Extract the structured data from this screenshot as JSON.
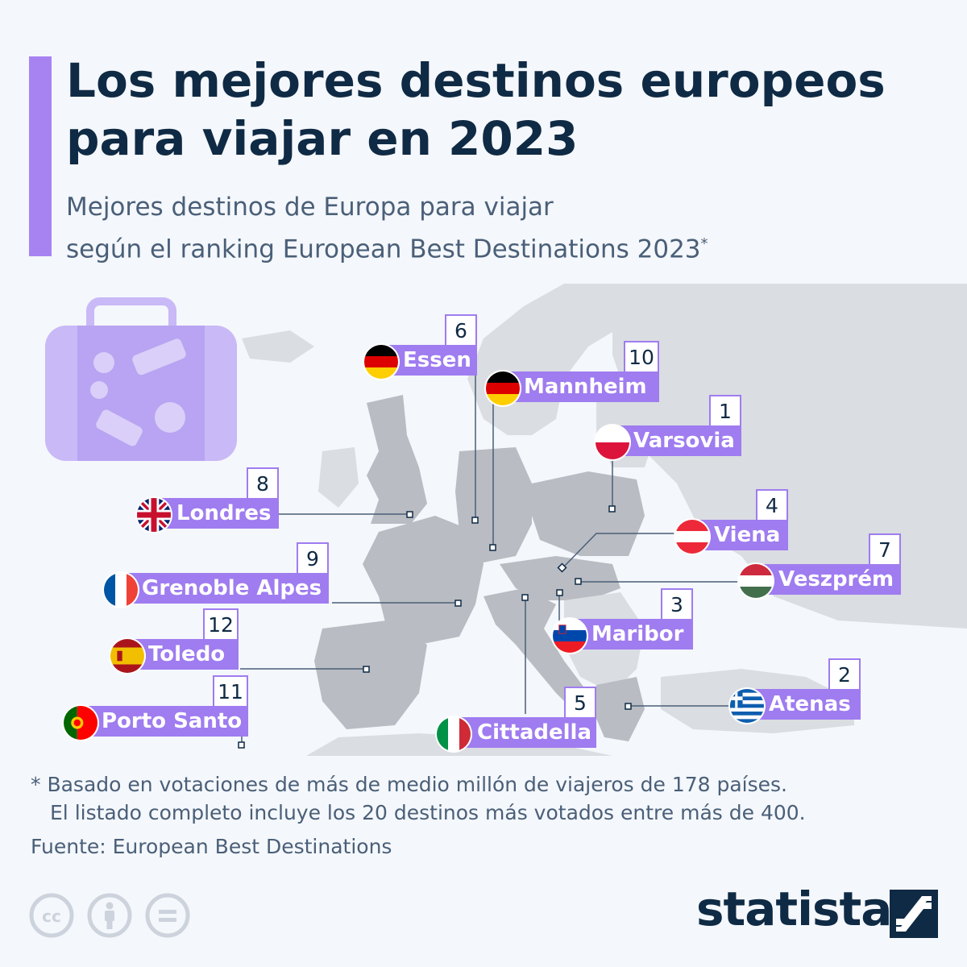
{
  "header": {
    "title_line1": "Los mejores destinos europeos",
    "title_line2": "para viajar en 2023",
    "subtitle_line1": "Mejores destinos de Europa para viajar",
    "subtitle_line2": "según el ranking European Best Destinations 2023",
    "subtitle_mark": "*",
    "accent_color": "#a783f2"
  },
  "destinations": [
    {
      "rank": "6",
      "name": "Essen",
      "country_flag": "germany-flag"
    },
    {
      "rank": "10",
      "name": "Mannheim",
      "country_flag": "germany-flag"
    },
    {
      "rank": "1",
      "name": "Varsovia",
      "country_flag": "poland-flag"
    },
    {
      "rank": "8",
      "name": "Londres",
      "country_flag": "uk-flag"
    },
    {
      "rank": "4",
      "name": "Viena",
      "country_flag": "austria-flag"
    },
    {
      "rank": "9",
      "name": "Grenoble Alpes",
      "country_flag": "france-flag"
    },
    {
      "rank": "7",
      "name": "Veszprém",
      "country_flag": "hungary-flag"
    },
    {
      "rank": "3",
      "name": "Maribor",
      "country_flag": "slovenia-flag"
    },
    {
      "rank": "12",
      "name": "Toledo",
      "country_flag": "spain-flag"
    },
    {
      "rank": "2",
      "name": "Atenas",
      "country_flag": "greece-flag"
    },
    {
      "rank": "11",
      "name": "Porto Santo",
      "country_flag": "portugal-flag"
    },
    {
      "rank": "5",
      "name": "Cittadella",
      "country_flag": "italy-flag"
    }
  ],
  "footer": {
    "footnote_line1": "* Basado en votaciones de más de medio millón de viajeros de 178 países.",
    "footnote_line2": "El listado completo incluye los 20 destinos más votados entre más de 400.",
    "source": "Fuente: European Best Destinations",
    "license_icons": [
      "creative-commons-icon",
      "attribution-icon",
      "no-derivatives-icon"
    ],
    "brand": "statista"
  },
  "colors": {
    "label_bg": "#9f7cf0",
    "map_land_highlight": "#b9bcc2",
    "map_land": "#dadde1",
    "title": "#0f2a44"
  }
}
